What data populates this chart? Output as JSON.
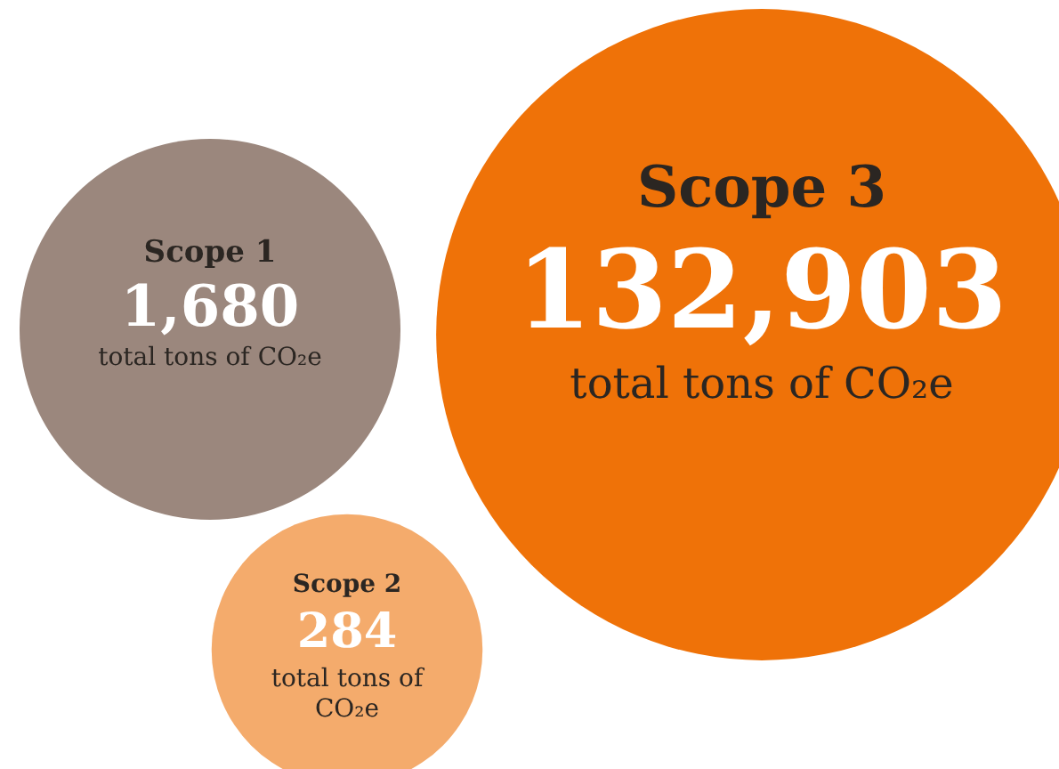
{
  "chart_data": {
    "type": "other",
    "categories": [
      "Scope 1",
      "Scope 2",
      "Scope 3"
    ],
    "values": [
      1680,
      284,
      132903
    ],
    "value_labels": [
      "1,680",
      "284",
      "132,903"
    ],
    "colors": [
      "#9b877d",
      "#f4ab6c",
      "#ef7208"
    ],
    "annotations": [
      "total tons of CO₂e",
      "total tons of CO₂e",
      "total tons of CO₂e"
    ]
  }
}
